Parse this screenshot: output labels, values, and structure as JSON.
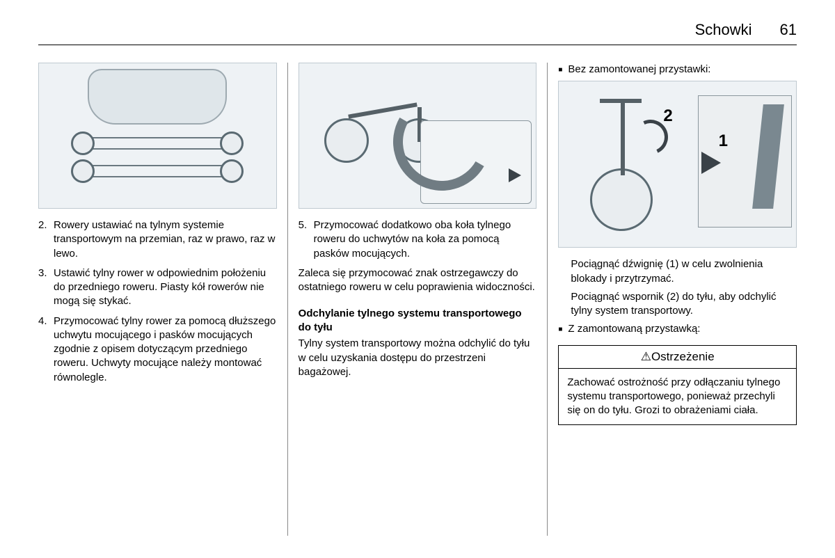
{
  "header": {
    "section": "Schowki",
    "page": "61"
  },
  "col1": {
    "steps": [
      {
        "n": "2.",
        "t": "Rowery ustawiać na tylnym systemie transportowym na przemian, raz w prawo, raz w lewo."
      },
      {
        "n": "3.",
        "t": "Ustawić tylny rower w odpowiednim położeniu do przedniego roweru. Piasty kół rowerów nie mogą się stykać."
      },
      {
        "n": "4.",
        "t": "Przymocować tylny rower za pomocą dłuższego uchwytu mocującego i pasków mocujących zgodnie z opisem dotyczącym przedniego roweru. Uchwyty mocujące należy montować równolegle."
      }
    ]
  },
  "col2": {
    "step5": {
      "n": "5.",
      "t": "Przymocować dodatkowo oba koła tylnego roweru do uchwytów na koła za pomocą pasków mocujących."
    },
    "para": "Zaleca się przymocować znak ostrzegawczy do ostatniego roweru w celu poprawienia widoczności.",
    "subhead": "Odchylanie tylnego systemu transportowego do tyłu",
    "body": "Tylny system transportowy można odchylić do tyłu w celu uzyskania dostępu do przestrzeni bagażowej."
  },
  "col3": {
    "bullet1": "Bez zamontowanej przystawki:",
    "indent1": "Pociągnąć dźwignię (1) w celu zwolnienia blokady i przytrzymać.",
    "indent2": "Pociągnąć wspornik (2) do tyłu, aby odchylić tylny system transportowy.",
    "bullet2": "Z zamontowaną przystawką:",
    "warn_title": "Ostrzeżenie",
    "warn_body": "Zachować ostrożność przy odłączaniu tylnego systemu transportowego, ponieważ przechyli się on do tyłu. Grozi to obrażeniami ciała.",
    "labels": {
      "one": "1",
      "two": "2"
    }
  },
  "colors": {
    "border": "#000000",
    "divider": "#888888",
    "img_bg": "#eef2f5",
    "img_border": "#bfc9d0"
  }
}
